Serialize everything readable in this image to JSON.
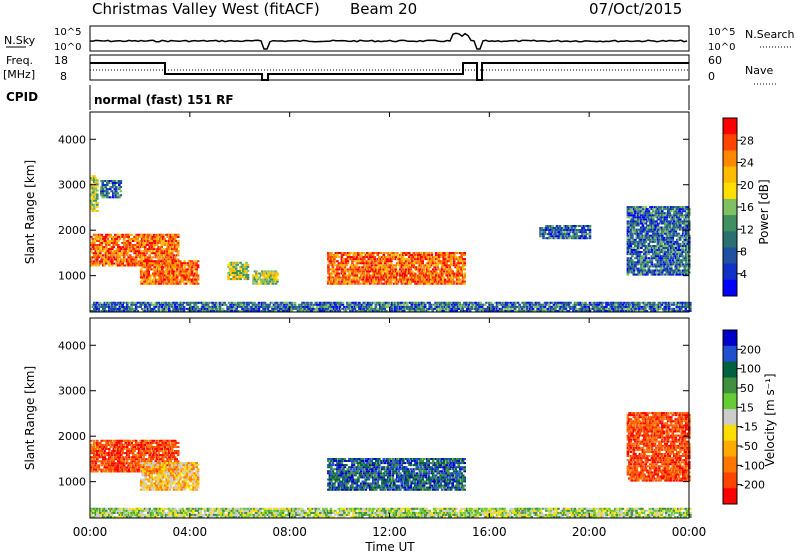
{
  "header": {
    "station": "Christmas Valley West (fitACF)",
    "beam": "Beam 20",
    "date": "07/Oct/2015"
  },
  "small_panels": {
    "nsky_label": "N.Sky",
    "nsky_ticks": [
      "10^5",
      "10^0"
    ],
    "nsearch_label": "N.Search",
    "nsearch_ticks": [
      "10^5",
      "10^0"
    ],
    "freq_label_1": "Freq.",
    "freq_label_2": "[MHz]",
    "freq_ticks": [
      "18",
      "8"
    ],
    "nave_label": "Nave",
    "nave_ticks": [
      "60",
      "0"
    ],
    "cpid_label": "CPID",
    "cpid_value": "normal (fast) 151 RF"
  },
  "chart_data": [
    {
      "type": "heatmap",
      "name": "power",
      "ylabel": "Slant Range [km]",
      "yticks": [
        "4000",
        "3000",
        "2000",
        "1000"
      ],
      "ylim": [
        200,
        4600
      ],
      "xlim_hours": [
        0,
        24
      ],
      "colorbar": {
        "label": "Power [dB]",
        "ticks": [
          "28",
          "24",
          "20",
          "16",
          "12",
          "8",
          "4"
        ],
        "colors": [
          "#ff0000",
          "#ff4400",
          "#ff8800",
          "#ffbb00",
          "#ffe000",
          "#7fc060",
          "#3f9060",
          "#2a7070",
          "#2050a0",
          "#1030c8",
          "#0000ff"
        ]
      },
      "regions": [
        {
          "t0": 0.0,
          "t1": 0.3,
          "r0": 2400,
          "r1": 3200,
          "level": "mid"
        },
        {
          "t0": 0.4,
          "t1": 1.2,
          "r0": 2700,
          "r1": 3100,
          "level": "low"
        },
        {
          "t0": 0.0,
          "t1": 3.5,
          "r0": 1200,
          "r1": 1900,
          "level": "high"
        },
        {
          "t0": 2.0,
          "t1": 4.3,
          "r0": 800,
          "r1": 1300,
          "level": "high"
        },
        {
          "t0": 5.5,
          "t1": 6.3,
          "r0": 900,
          "r1": 1300,
          "level": "mid"
        },
        {
          "t0": 6.5,
          "t1": 7.5,
          "r0": 800,
          "r1": 1100,
          "level": "mid"
        },
        {
          "t0": 9.5,
          "t1": 15.0,
          "r0": 800,
          "r1": 1500,
          "level": "high"
        },
        {
          "t0": 18.0,
          "t1": 20.0,
          "r0": 1800,
          "r1": 2100,
          "level": "low"
        },
        {
          "t0": 21.5,
          "t1": 24.0,
          "r0": 1000,
          "r1": 2500,
          "level": "low"
        },
        {
          "t0": 0.0,
          "t1": 24.0,
          "r0": 200,
          "r1": 400,
          "level": "low"
        }
      ]
    },
    {
      "type": "heatmap",
      "name": "velocity",
      "ylabel": "Slant Range [km]",
      "yticks": [
        "4000",
        "3000",
        "2000",
        "1000"
      ],
      "ylim": [
        200,
        4600
      ],
      "xlim_hours": [
        0,
        24
      ],
      "colorbar": {
        "label": "Velocity [m s⁻¹]",
        "ticks": [
          "200",
          "100",
          "50",
          "15",
          "-15",
          "-50",
          "-100",
          "-200"
        ],
        "colors": [
          "#0000c8",
          "#2050d0",
          "#006040",
          "#3f9040",
          "#66cc33",
          "#cccccc",
          "#ffdd00",
          "#ffaa00",
          "#ff7700",
          "#ff4400",
          "#ff0000"
        ]
      },
      "regions": [
        {
          "t0": 0.0,
          "t1": 3.5,
          "r0": 1200,
          "r1": 1900,
          "level": "red"
        },
        {
          "t0": 2.0,
          "t1": 4.3,
          "r0": 800,
          "r1": 1400,
          "level": "orange"
        },
        {
          "t0": 9.5,
          "t1": 15.0,
          "r0": 800,
          "r1": 1500,
          "level": "blue"
        },
        {
          "t0": 21.5,
          "t1": 24.0,
          "r0": 1000,
          "r1": 2500,
          "level": "red"
        },
        {
          "t0": 0.0,
          "t1": 24.0,
          "r0": 200,
          "r1": 400,
          "level": "green"
        }
      ]
    }
  ],
  "xaxis": {
    "ticks": [
      "00:00",
      "04:00",
      "08:00",
      "12:00",
      "16:00",
      "20:00",
      "00:00"
    ],
    "label": "Time UT"
  }
}
